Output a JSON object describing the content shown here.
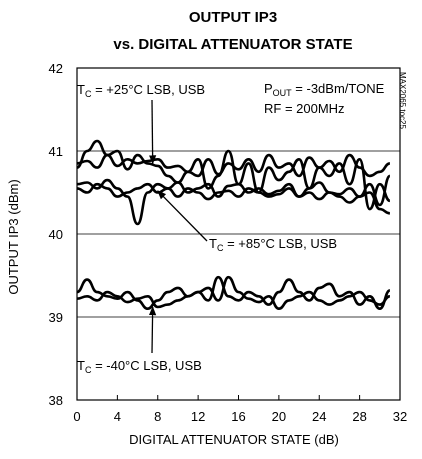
{
  "chart_data": {
    "type": "line",
    "title_line1": "OUTPUT IP3",
    "title_line2": "vs. DIGITAL ATTENUATOR STATE",
    "xlabel": "DIGITAL ATTENUATOR STATE (dB)",
    "ylabel": "OUTPUT IP3 (dBm)",
    "xlim": [
      0,
      32
    ],
    "ylim": [
      38,
      42
    ],
    "xticks": [
      "0",
      "4",
      "8",
      "12",
      "16",
      "20",
      "24",
      "28",
      "32"
    ],
    "yticks": [
      "38",
      "39",
      "40",
      "41",
      "42"
    ],
    "grid": true,
    "conditions": [
      "P",
      "OUT",
      " = -3dBm/TONE",
      "RF = 200MHz"
    ],
    "side_label": "MAX2065 toc25",
    "series": [
      {
        "group": "+25C",
        "x": [
          0,
          1,
          2,
          3,
          4,
          5,
          6,
          7,
          8,
          9,
          10,
          11,
          12,
          13,
          14,
          15,
          16,
          17,
          18,
          19,
          20,
          21,
          22,
          23,
          24,
          25,
          26,
          27,
          28,
          29,
          30,
          31
        ],
        "y": [
          40.8,
          41.0,
          41.12,
          40.95,
          40.82,
          40.9,
          40.85,
          40.88,
          40.9,
          40.8,
          40.82,
          40.75,
          40.7,
          40.9,
          40.72,
          40.85,
          40.78,
          40.9,
          40.75,
          40.95,
          40.8,
          40.85,
          40.7,
          40.92,
          40.8,
          40.88,
          40.75,
          40.95,
          40.8,
          40.7,
          40.75,
          40.85
        ]
      },
      {
        "group": "+25C",
        "x": [
          0,
          1,
          2,
          3,
          4,
          5,
          6,
          7,
          8,
          9,
          10,
          11,
          12,
          13,
          14,
          15,
          16,
          17,
          18,
          19,
          20,
          21,
          22,
          23,
          24,
          25,
          26,
          27,
          28,
          29,
          30,
          31
        ],
        "y": [
          40.85,
          40.88,
          40.8,
          40.95,
          41.0,
          40.78,
          40.95,
          40.85,
          40.82,
          40.7,
          40.62,
          40.75,
          40.9,
          40.55,
          40.7,
          41.0,
          40.6,
          40.85,
          40.5,
          40.8,
          40.65,
          40.75,
          40.9,
          40.55,
          40.8,
          40.7,
          40.85,
          40.6,
          40.9,
          40.3,
          40.6,
          40.4
        ]
      },
      {
        "group": "+85C",
        "x": [
          0,
          1,
          2,
          3,
          4,
          5,
          6,
          7,
          8,
          9,
          10,
          11,
          12,
          13,
          14,
          15,
          16,
          17,
          18,
          19,
          20,
          21,
          22,
          23,
          24,
          25,
          26,
          27,
          28,
          29,
          30,
          31
        ],
        "y": [
          40.6,
          40.62,
          40.55,
          40.65,
          40.55,
          40.45,
          40.12,
          40.5,
          40.6,
          40.55,
          40.62,
          40.5,
          40.55,
          40.6,
          40.45,
          40.58,
          40.6,
          40.5,
          40.55,
          40.48,
          40.52,
          40.6,
          40.45,
          40.55,
          40.62,
          40.5,
          40.48,
          40.55,
          40.45,
          40.6,
          40.35,
          40.7
        ]
      },
      {
        "group": "+85C",
        "x": [
          0,
          1,
          2,
          3,
          4,
          5,
          6,
          7,
          8,
          9,
          10,
          11,
          12,
          13,
          14,
          15,
          16,
          17,
          18,
          19,
          20,
          21,
          22,
          23,
          24,
          25,
          26,
          27,
          28,
          29,
          30,
          31
        ],
        "y": [
          40.55,
          40.5,
          40.6,
          40.55,
          40.45,
          40.5,
          40.55,
          40.6,
          40.5,
          40.55,
          40.45,
          40.55,
          40.5,
          40.42,
          40.5,
          40.52,
          40.45,
          40.55,
          40.5,
          40.45,
          40.48,
          40.55,
          40.45,
          40.5,
          40.42,
          40.5,
          40.45,
          40.38,
          40.45,
          40.5,
          40.3,
          40.25
        ]
      },
      {
        "group": "-40C",
        "x": [
          0,
          1,
          2,
          3,
          4,
          5,
          6,
          7,
          8,
          9,
          10,
          11,
          12,
          13,
          14,
          15,
          16,
          17,
          18,
          19,
          20,
          21,
          22,
          23,
          24,
          25,
          26,
          27,
          28,
          29,
          30,
          31
        ],
        "y": [
          39.3,
          39.45,
          39.3,
          39.25,
          39.22,
          39.3,
          39.2,
          39.1,
          39.2,
          39.3,
          39.35,
          39.25,
          39.3,
          39.2,
          39.48,
          39.25,
          39.2,
          39.3,
          39.25,
          39.15,
          39.3,
          39.45,
          39.3,
          39.2,
          39.35,
          39.4,
          39.25,
          39.3,
          39.15,
          39.25,
          39.1,
          39.32
        ]
      },
      {
        "group": "-40C",
        "x": [
          0,
          1,
          2,
          3,
          4,
          5,
          6,
          7,
          8,
          9,
          10,
          11,
          12,
          13,
          14,
          15,
          16,
          17,
          18,
          19,
          20,
          21,
          22,
          23,
          24,
          25,
          26,
          27,
          28,
          29,
          30,
          31
        ],
        "y": [
          39.22,
          39.25,
          39.2,
          39.3,
          39.25,
          39.18,
          39.22,
          39.25,
          39.12,
          39.15,
          39.2,
          39.25,
          39.3,
          39.35,
          39.2,
          39.48,
          39.3,
          39.22,
          39.18,
          39.25,
          39.1,
          39.2,
          39.25,
          39.3,
          39.2,
          39.15,
          39.2,
          39.25,
          39.3,
          39.2,
          39.15,
          39.25
        ]
      }
    ],
    "annotations": [
      {
        "name": "annotation-25c",
        "prefix": "T",
        "sub": "C",
        "text": " = +25°C LSB, USB",
        "tx": 7.5,
        "ty": 40.85
      },
      {
        "name": "annotation-85c",
        "prefix": "T",
        "sub": "C",
        "text": " = +85°C LSB, USB",
        "tx": 8.0,
        "ty": 40.52
      },
      {
        "name": "annotation-m40c",
        "prefix": "T",
        "sub": "C",
        "text": " = -40°C LSB, USB",
        "tx": 7.5,
        "ty": 39.12
      }
    ]
  }
}
